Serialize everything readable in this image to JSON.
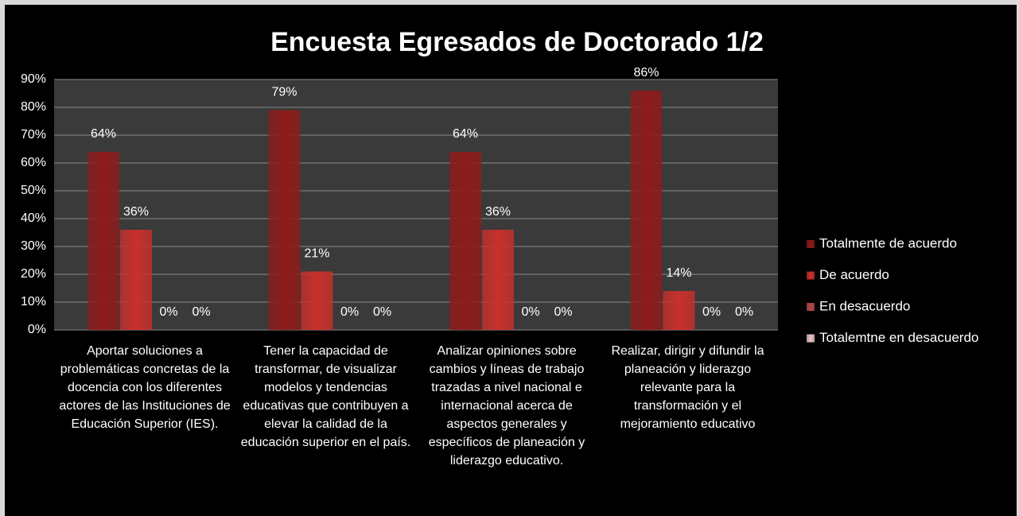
{
  "chart_data": {
    "type": "bar",
    "title": "Encuesta Egresados de Doctorado 1/2",
    "categories": [
      "Aportar soluciones a problemáticas concretas de la docencia con los diferentes actores de las Instituciones de Educación Superior (IES).",
      "Tener la capacidad de transformar, de visualizar modelos y tendencias educativas que contribuyen a elevar la calidad de la educación superior en el país.",
      "Analizar opiniones sobre cambios y líneas de trabajo trazadas a nivel nacional e internacional acerca de aspectos generales y específicos de planeación y liderazgo educativo.",
      "Realizar, dirigir y difundir la planeación y liderazgo relevante para la transformación y el mejoramiento educativo"
    ],
    "series": [
      {
        "name": "Totalmente de acuerdo",
        "color": "#8e1b1b",
        "values": [
          64,
          79,
          64,
          86
        ],
        "value_labels": [
          "64%",
          "79%",
          "64%",
          "86%"
        ]
      },
      {
        "name": "De acuerdo",
        "color": "#c8302c",
        "values": [
          36,
          21,
          36,
          14
        ],
        "value_labels": [
          "36%",
          "21%",
          "36%",
          "14%"
        ]
      },
      {
        "name": "En desacuerdo",
        "color": "#b54a4a",
        "values": [
          0,
          0,
          0,
          0
        ],
        "value_labels": [
          "0%",
          "0%",
          "0%",
          "0%"
        ]
      },
      {
        "name": "Totalemtne en desacuerdo",
        "color": "#e8c4c4",
        "values": [
          0,
          0,
          0,
          0
        ],
        "value_labels": [
          "0%",
          "0%",
          "0%",
          "0%"
        ]
      }
    ],
    "ylim": [
      0,
      90
    ],
    "yticks": [
      {
        "value": 0,
        "label": "0%"
      },
      {
        "value": 10,
        "label": "10%"
      },
      {
        "value": 20,
        "label": "20%"
      },
      {
        "value": 30,
        "label": "30%"
      },
      {
        "value": 40,
        "label": "40%"
      },
      {
        "value": 50,
        "label": "50%"
      },
      {
        "value": 60,
        "label": "60%"
      },
      {
        "value": 70,
        "label": "70%"
      },
      {
        "value": 80,
        "label": "80%"
      },
      {
        "value": 90,
        "label": "90%"
      }
    ],
    "grid": true,
    "legend": "right"
  }
}
